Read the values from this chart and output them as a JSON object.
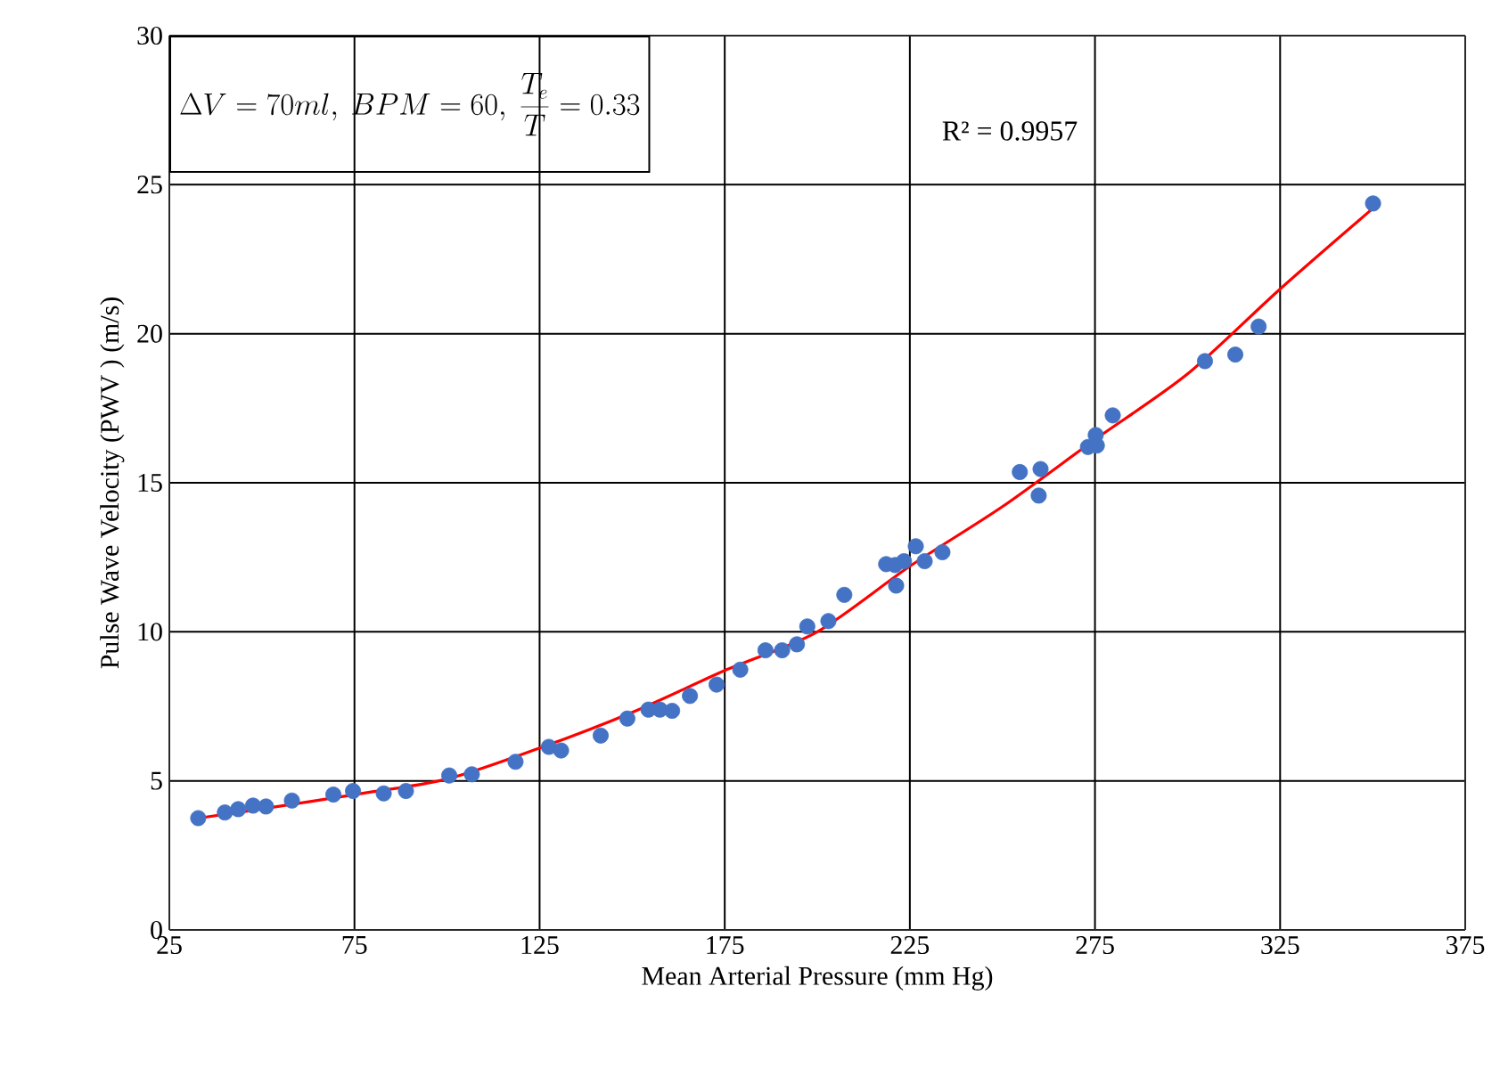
{
  "chart_data": {
    "type": "scatter",
    "xlabel": "Mean Arterial Pressure (mm Hg)",
    "ylabel": "Pulse Wave Velocity (PWV ) (m/s)",
    "xlim": [
      25,
      375
    ],
    "xticks": [
      25,
      75,
      125,
      175,
      225,
      275,
      325,
      375
    ],
    "ylim": [
      0,
      30
    ],
    "yticks": [
      0,
      5,
      10,
      15,
      20,
      25,
      30
    ],
    "grid": true,
    "annotations": [
      "\\Delta V = 70ml,\\ BPM = 60,\\ \\frac{T_e}{T} = 0.33",
      "R² = 0.9957"
    ],
    "series": [
      {
        "type": "scatter",
        "color": "#4472c4",
        "marker": "circle",
        "x": [
          32.8,
          40,
          43.6,
          47.6,
          51.1,
          58.1,
          69.3,
          74.6,
          82.9,
          88.9,
          100.6,
          106.7,
          118.5,
          127.5,
          130.8,
          141.5,
          148.7,
          154.4,
          157.5,
          160.8,
          165.6,
          172.8,
          179.2,
          186,
          190.5,
          194.5,
          197.3,
          203,
          207.3,
          218.6,
          221,
          221.3,
          223.4,
          226.6,
          229,
          233.8,
          254.7,
          260.3,
          259.8,
          273.1,
          275.2,
          275.5,
          279.8,
          304.7,
          312.9,
          319.2,
          350.1
        ],
        "values": [
          3.75,
          3.94,
          4.05,
          4.17,
          4.14,
          4.34,
          4.54,
          4.66,
          4.58,
          4.66,
          5.18,
          5.22,
          5.64,
          6.14,
          6.02,
          6.52,
          7.09,
          7.39,
          7.39,
          7.35,
          7.85,
          8.23,
          8.73,
          9.38,
          9.38,
          9.58,
          10.18,
          10.36,
          11.24,
          12.27,
          12.24,
          11.55,
          12.37,
          12.87,
          12.37,
          12.67,
          15.36,
          15.46,
          14.57,
          16.2,
          16.6,
          16.25,
          17.26,
          19.08,
          19.3,
          20.24,
          24.37
        ]
      },
      {
        "type": "line",
        "color": "#ff0000",
        "line_style": "solid",
        "x": [
          33,
          50,
          75,
          100,
          125,
          150,
          175,
          200,
          225,
          250,
          275,
          300,
          325,
          350
        ],
        "values": [
          3.75,
          4.06,
          4.54,
          5.06,
          6.1,
          7.3,
          8.7,
          10.0,
          12.2,
          14.2,
          16.45,
          18.65,
          21.5,
          24.2
        ]
      }
    ]
  }
}
